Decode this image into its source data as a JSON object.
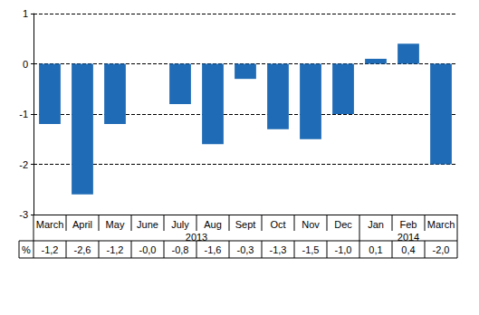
{
  "chart_data": {
    "type": "bar",
    "categories": [
      "March",
      "April",
      "May",
      "June",
      "July",
      "Aug",
      "Sept",
      "Oct",
      "Nov",
      "Dec",
      "Jan",
      "Feb",
      "March"
    ],
    "years": [
      "2013",
      "2013",
      "2013",
      "2013",
      "2013",
      "2013",
      "2013",
      "2013",
      "2013",
      "2013",
      "2014",
      "2014",
      "2014"
    ],
    "values": [
      -1.2,
      -2.6,
      -1.2,
      0,
      -0.8,
      -1.6,
      -0.3,
      -1.3,
      -1.5,
      -1.0,
      0.1,
      0.4,
      -2.0
    ],
    "value_labels": [
      "-1,2",
      "-2,6",
      "-1,2",
      "-0,0",
      "-0,8",
      "-1,6",
      "-0,3",
      "-1,3",
      "-1,5",
      "-1,0",
      "0,1",
      "0,4",
      "-2,0"
    ],
    "value_label_row": "%",
    "color": "#1f6bb5",
    "ylim": [
      -3,
      1
    ],
    "yticks": [
      -3,
      -2,
      -1,
      0,
      1
    ],
    "grid": true
  }
}
